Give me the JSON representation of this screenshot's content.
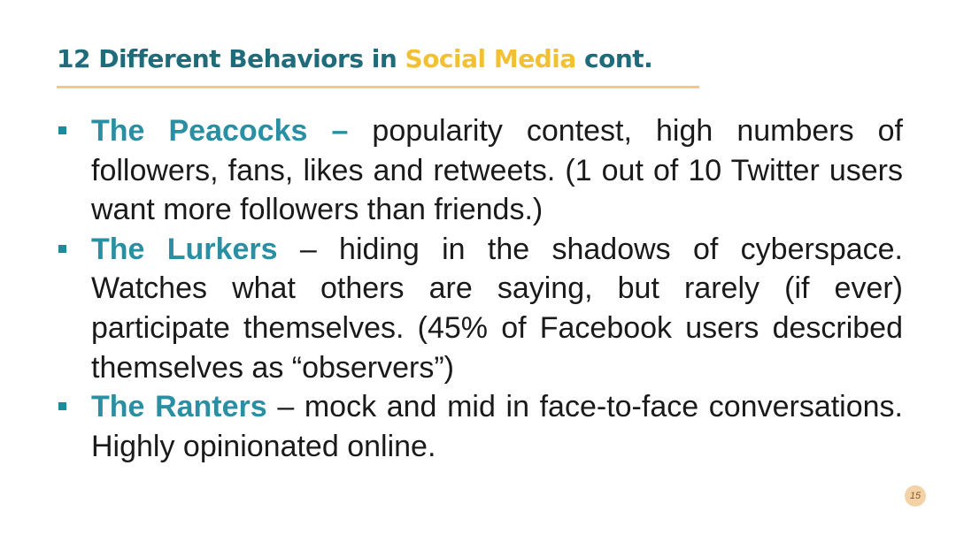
{
  "slide": {
    "title_main": "12 Different Behaviors in ",
    "title_accent": "Social Media",
    "title_suffix": " cont.",
    "page_number": "15"
  },
  "bullets": [
    {
      "term": "The Peacocks –",
      "text": " popularity contest, high numbers of followers, fans, likes and retweets. (1 out of 10 Twitter users want more followers than friends.)"
    },
    {
      "term": "The Lurkers",
      "text": " – hiding in the shadows of cyberspace. Watches what others are saying, but rarely (if ever) participate themselves. (45% of Facebook users described themselves as “observers”)"
    },
    {
      "term": "The Ranters",
      "text": " – mock and mid in face-to-face conversations. Highly opinionated online."
    }
  ],
  "colors": {
    "title": "#1f6b7a",
    "title_accent": "#f2c133",
    "term": "#2a8fa3",
    "underline": "#f0c889",
    "page_badge": "#f3d2a8"
  },
  "icons": {
    "bullet": "square-bullet-icon"
  }
}
